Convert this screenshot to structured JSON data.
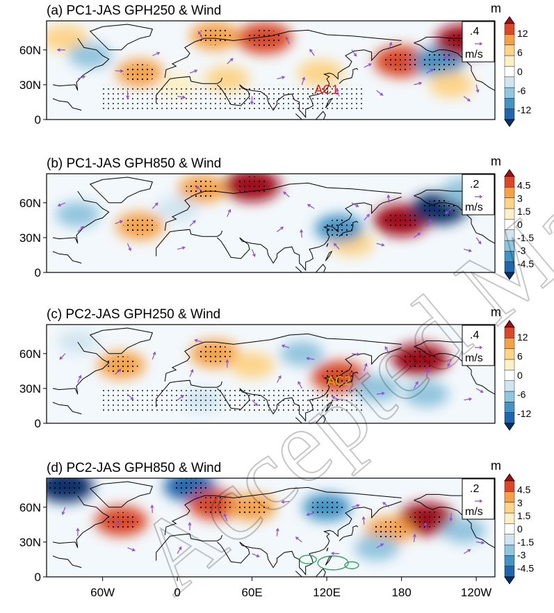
{
  "chart_data": [
    {
      "type": "heatmap",
      "panel": "a",
      "title": "(a) PC1-JAS GPH250 & Wind",
      "colorbar_unit": "m",
      "colorbar_ticks": [
        "12",
        "6",
        "0",
        "-6",
        "-12"
      ],
      "colorbar_values": [
        12,
        6,
        0,
        -6,
        -12
      ],
      "colorbar_range": [
        -15,
        15
      ],
      "ref_vector_value": ".4",
      "ref_vector_unit": "m/s",
      "annotation": "AC1",
      "annotation_color": "#d42020",
      "anomalies": [
        {
          "lon": -90,
          "lat": 70,
          "v": 7
        },
        {
          "lon": 70,
          "lat": 70,
          "v": 13
        },
        {
          "lon": 30,
          "lat": 72,
          "v": 9
        },
        {
          "lon": 180,
          "lat": 50,
          "v": 13
        },
        {
          "lon": 210,
          "lat": 50,
          "v": -10
        },
        {
          "lon": 230,
          "lat": 68,
          "v": 14
        },
        {
          "lon": -30,
          "lat": 40,
          "v": 8
        },
        {
          "lon": 40,
          "lat": 35,
          "v": 6
        },
        {
          "lon": 115,
          "lat": 40,
          "v": 7
        },
        {
          "lon": -70,
          "lat": 55,
          "v": -5
        },
        {
          "lon": 220,
          "lat": 30,
          "v": 6
        },
        {
          "lon": 0,
          "lat": 30,
          "v": 4
        }
      ]
    },
    {
      "type": "heatmap",
      "panel": "b",
      "title": "(b) PC1-JAS GPH850 & Wind",
      "colorbar_unit": "m",
      "colorbar_ticks": [
        "4.5",
        "3",
        "1.5",
        "0",
        "-1.5",
        "-3",
        "-4.5"
      ],
      "colorbar_values": [
        4.5,
        3,
        1.5,
        0,
        -1.5,
        -3,
        -4.5
      ],
      "colorbar_range": [
        -5.5,
        5.5
      ],
      "ref_vector_value": ".2",
      "ref_vector_unit": "m/s",
      "annotation": "",
      "annotation_color": "#d42020",
      "anomalies": [
        {
          "lon": 60,
          "lat": 75,
          "v": 5
        },
        {
          "lon": 20,
          "lat": 72,
          "v": 3
        },
        {
          "lon": 180,
          "lat": 45,
          "v": 5
        },
        {
          "lon": 210,
          "lat": 55,
          "v": -5
        },
        {
          "lon": -30,
          "lat": 40,
          "v": 3
        },
        {
          "lon": 140,
          "lat": 25,
          "v": 2
        },
        {
          "lon": 130,
          "lat": 38,
          "v": -3
        },
        {
          "lon": -80,
          "lat": 50,
          "v": -2
        },
        {
          "lon": 230,
          "lat": 70,
          "v": -2
        },
        {
          "lon": 0,
          "lat": 55,
          "v": -1.5
        }
      ]
    },
    {
      "type": "heatmap",
      "panel": "c",
      "title": "(c) PC2-JAS GPH250 & Wind",
      "colorbar_unit": "m",
      "colorbar_ticks": [
        "12",
        "6",
        "0",
        "-6",
        "-12"
      ],
      "colorbar_values": [
        12,
        6,
        0,
        -6,
        -12
      ],
      "colorbar_range": [
        -15,
        15
      ],
      "ref_vector_value": ".4",
      "ref_vector_unit": "m/s",
      "annotation": "AC2",
      "annotation_color": "#d4b000",
      "anomalies": [
        {
          "lon": -45,
          "lat": 50,
          "v": 8
        },
        {
          "lon": 30,
          "lat": 60,
          "v": 9
        },
        {
          "lon": 60,
          "lat": 50,
          "v": 6
        },
        {
          "lon": 130,
          "lat": 40,
          "v": 13
        },
        {
          "lon": 195,
          "lat": 55,
          "v": 14
        },
        {
          "lon": 100,
          "lat": 60,
          "v": -5
        },
        {
          "lon": 160,
          "lat": 30,
          "v": -7
        },
        {
          "lon": 200,
          "lat": 25,
          "v": -6
        },
        {
          "lon": -80,
          "lat": 70,
          "v": -3
        },
        {
          "lon": 20,
          "lat": 20,
          "v": -3
        }
      ]
    },
    {
      "type": "heatmap",
      "panel": "d",
      "title": "(d) PC2-JAS GPH850 & Wind",
      "colorbar_unit": "m",
      "colorbar_ticks": [
        "4.5",
        "3",
        "1.5",
        "0",
        "-1.5",
        "-3",
        "-4.5"
      ],
      "colorbar_values": [
        4.5,
        3,
        1.5,
        0,
        -1.5,
        -3,
        -4.5
      ],
      "colorbar_range": [
        -5.5,
        5.5
      ],
      "ref_vector_value": ".2",
      "ref_vector_unit": "m/s",
      "annotation": "",
      "annotation_color": "#d42020",
      "anomalies": [
        {
          "lon": -90,
          "lat": 78,
          "v": -5
        },
        {
          "lon": 10,
          "lat": 78,
          "v": -4
        },
        {
          "lon": 30,
          "lat": 62,
          "v": 4
        },
        {
          "lon": 60,
          "lat": 60,
          "v": 3
        },
        {
          "lon": -45,
          "lat": 48,
          "v": 4
        },
        {
          "lon": 200,
          "lat": 50,
          "v": 5
        },
        {
          "lon": 170,
          "lat": 40,
          "v": 3
        },
        {
          "lon": 120,
          "lat": 60,
          "v": -3
        },
        {
          "lon": 160,
          "lat": 25,
          "v": -2
        },
        {
          "lon": 230,
          "lat": 40,
          "v": -2
        }
      ]
    }
  ],
  "axes": {
    "x_ticks": [
      "60W",
      "0",
      "60E",
      "120E",
      "180",
      "120W"
    ],
    "x_values": [
      -60,
      0,
      60,
      120,
      180,
      240
    ],
    "x_range": [
      -105,
      255
    ],
    "y_ticks": [
      "60N",
      "30N",
      "0"
    ],
    "y_values": [
      60,
      30,
      0
    ],
    "y_range": [
      0,
      85
    ]
  },
  "colors": {
    "scale": [
      "#08306b",
      "#2166ac",
      "#4393c3",
      "#92c5de",
      "#d1e5f0",
      "#ffffff",
      "#fdf0c8",
      "#fdd48a",
      "#f4a24a",
      "#d9482a",
      "#a10e1a"
    ],
    "vector": "#8a4fd8",
    "coast": "#000000",
    "contour": "#2e9b5a"
  },
  "watermark": "Accepted Manuscript"
}
